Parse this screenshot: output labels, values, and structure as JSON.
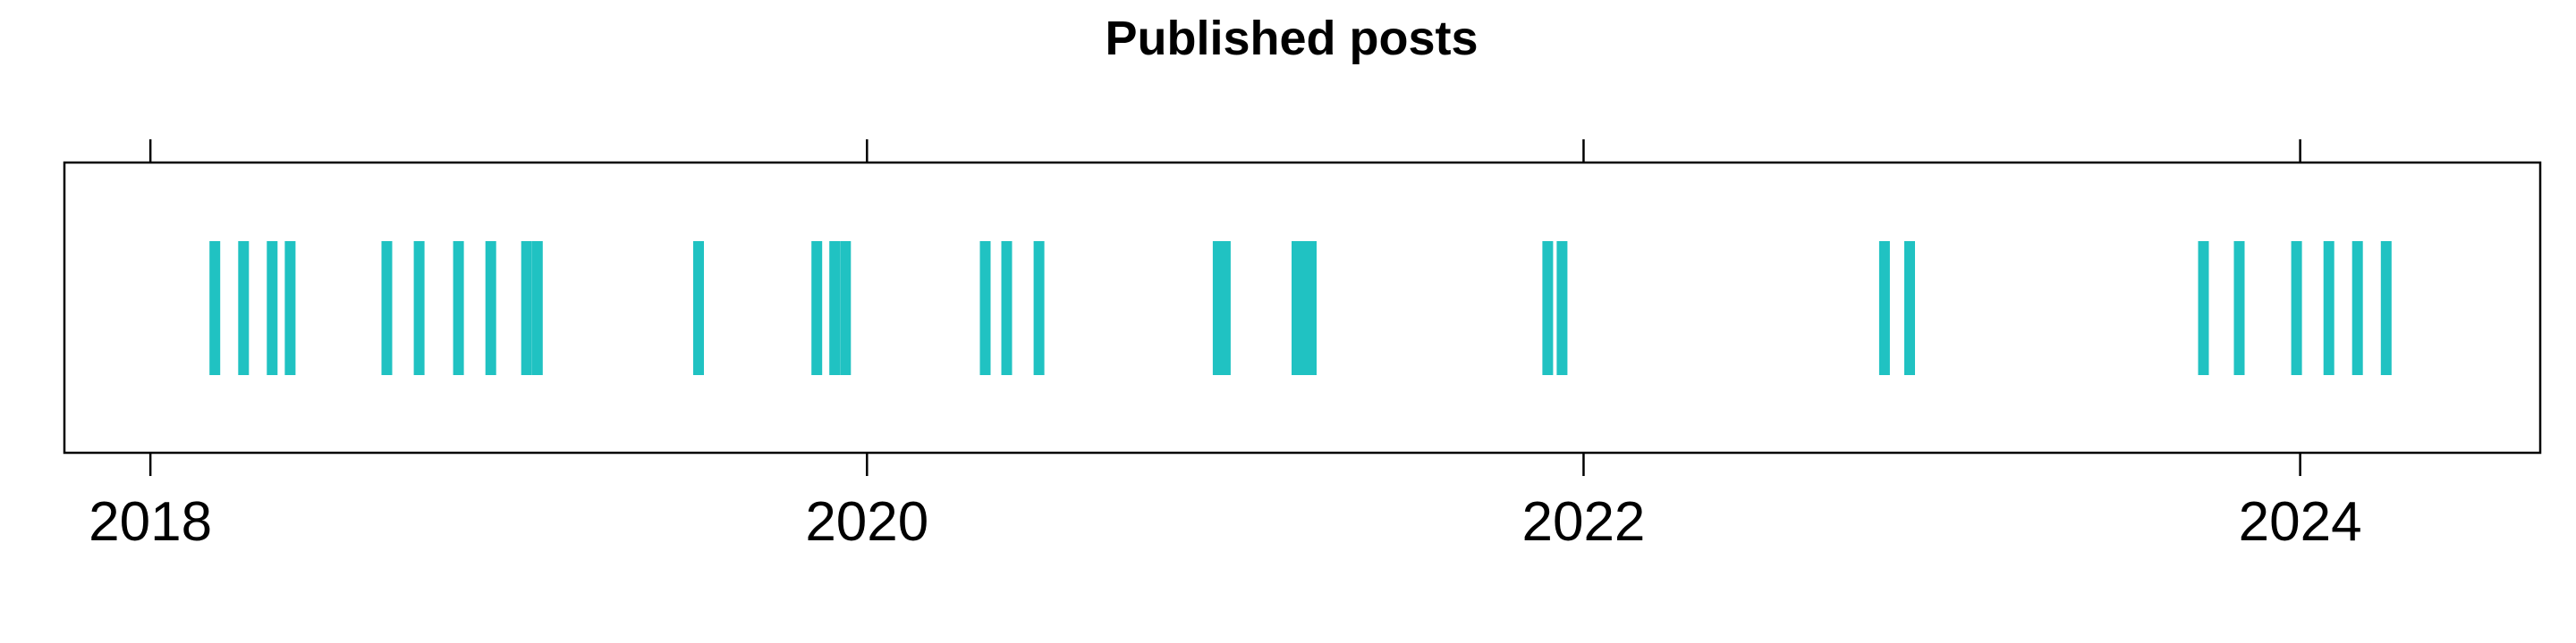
{
  "chart_data": {
    "type": "scatter",
    "title": "Published posts",
    "xlabel": "",
    "ylabel": "",
    "xlim": [
      2017.76,
      2024.67
    ],
    "xticks": [
      2018,
      2020,
      2022,
      2024
    ],
    "xtick_labels": [
      "2018",
      "2020",
      "2022",
      "2024"
    ],
    "x_axis_position": "bottom",
    "top_ticks": true,
    "grid": false,
    "legend": "none",
    "mark_color": "#20c2c2",
    "series": [
      {
        "values": [
          2018.18,
          2018.26,
          2018.34,
          2018.39,
          2018.66,
          2018.75,
          2018.86,
          2018.95,
          2019.05,
          2019.08,
          2019.53,
          2019.86,
          2019.91,
          2019.94,
          2020.33,
          2020.39,
          2020.48,
          2020.98,
          2021.0,
          2021.2,
          2021.22,
          2021.24,
          2021.9,
          2021.94,
          2022.84,
          2022.91,
          2023.73,
          2023.83,
          2023.99,
          2024.08,
          2024.16,
          2024.24
        ]
      }
    ]
  }
}
